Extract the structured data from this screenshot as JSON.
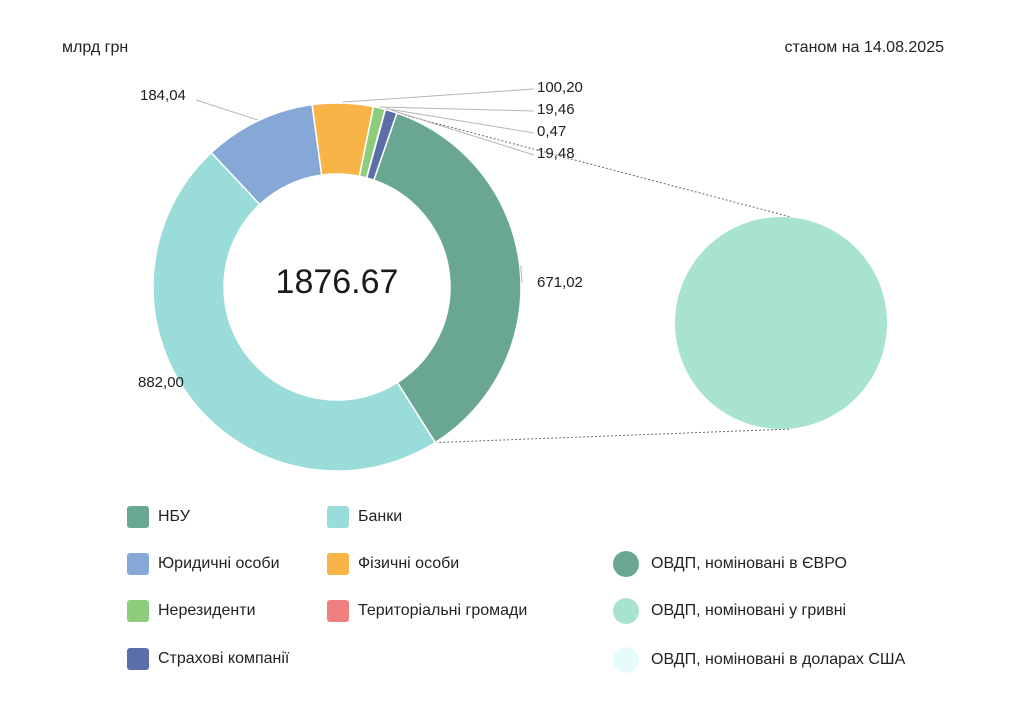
{
  "header": {
    "unit": "млрд грн",
    "as_of": "станом на 14.08.2025"
  },
  "chart_data": [
    {
      "type": "pie",
      "variant": "donut",
      "center_label": "1876.67",
      "series": [
        {
          "name": "НБУ",
          "label": "671,02",
          "value": 671.02,
          "color": "#6aa793"
        },
        {
          "name": "Банки",
          "label": "882,00",
          "value": 882.0,
          "color": "#9adcd9"
        },
        {
          "name": "Юридичні особи",
          "label": "184,04",
          "value": 184.04,
          "color": "#85a8d6"
        },
        {
          "name": "Фізичні особи",
          "label": "100,20",
          "value": 100.2,
          "color": "#f9b447"
        },
        {
          "name": "Нерезиденти",
          "label": "19,46",
          "value": 19.46,
          "color": "#8ccc7c"
        },
        {
          "name": "Територіальні громади",
          "label": "0,47",
          "value": 0.47,
          "color": "#f08080"
        },
        {
          "name": "Страхові компанії",
          "label": "19,48",
          "value": 19.48,
          "color": "#5a6fa8"
        }
      ],
      "legend_placement": "bottom"
    },
    {
      "type": "pie",
      "detail_of": "НБУ",
      "series": [
        {
          "name": "ОВДП, номіновані в ЄВРО",
          "value": 0,
          "color": "#6aa793"
        },
        {
          "name": "ОВДП, номіновані у гривні",
          "value": 671.02,
          "color": "#a8e2d0"
        },
        {
          "name": "ОВДП, номіновані в доларах США",
          "value": 0,
          "color": "#e6fcfb"
        }
      ],
      "legend_placement": "bottom-right"
    }
  ]
}
